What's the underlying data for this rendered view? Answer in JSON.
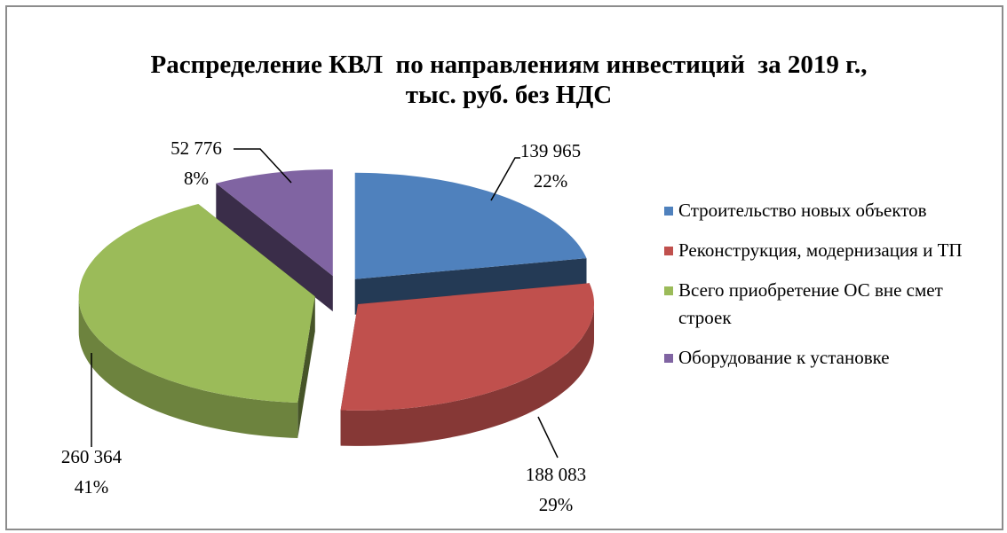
{
  "chart_data": {
    "type": "pie3d",
    "title": "Распределение КВЛ  по направлениям инвестиций  за 2019 г., тыс. руб. без НДС",
    "categories": [
      "Строительство новых объектов",
      "Реконструкция, модернизация и ТП",
      "Всего приобретение ОС вне смет строек",
      "Оборудование к установке"
    ],
    "values": [
      139965,
      188083,
      260364,
      52776
    ],
    "value_labels": [
      "139 965",
      "188 083",
      "260 364",
      "52 776"
    ],
    "percents": [
      22,
      29,
      41,
      8
    ],
    "percent_labels": [
      "22%",
      "29%",
      "41%",
      "8%"
    ],
    "colors": [
      "#4f81bd",
      "#c0504d",
      "#9bbb59",
      "#8064a2"
    ],
    "legend": "right"
  }
}
